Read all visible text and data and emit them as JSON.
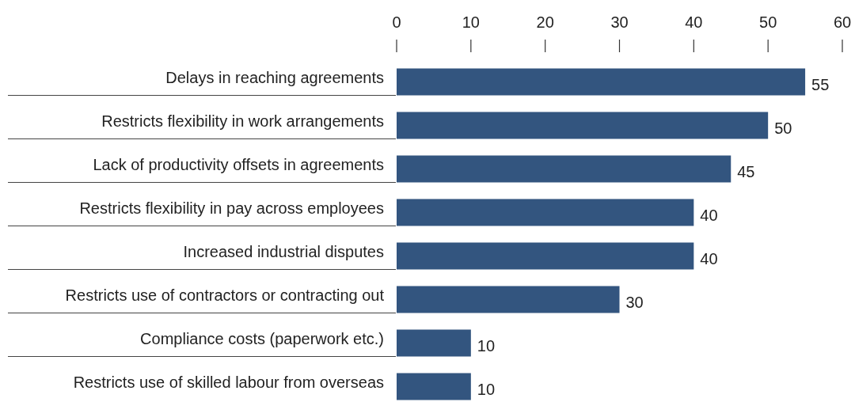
{
  "chart_data": {
    "type": "bar",
    "orientation": "horizontal",
    "categories": [
      "Delays in reaching agreements",
      "Restricts flexibility in work arrangements",
      "Lack of productivity offsets in agreements",
      "Restricts flexibility in pay across employees",
      "Increased industrial disputes",
      "Restricts use of contractors or contracting out",
      "Compliance costs (paperwork etc.)",
      "Restricts use of skilled labour from overseas"
    ],
    "values": [
      55,
      50,
      45,
      40,
      40,
      30,
      10,
      10
    ],
    "color": "#33557f",
    "xlim": [
      0,
      60
    ],
    "xticks": [
      0,
      10,
      20,
      30,
      40,
      50,
      60
    ],
    "data_labels": true
  }
}
